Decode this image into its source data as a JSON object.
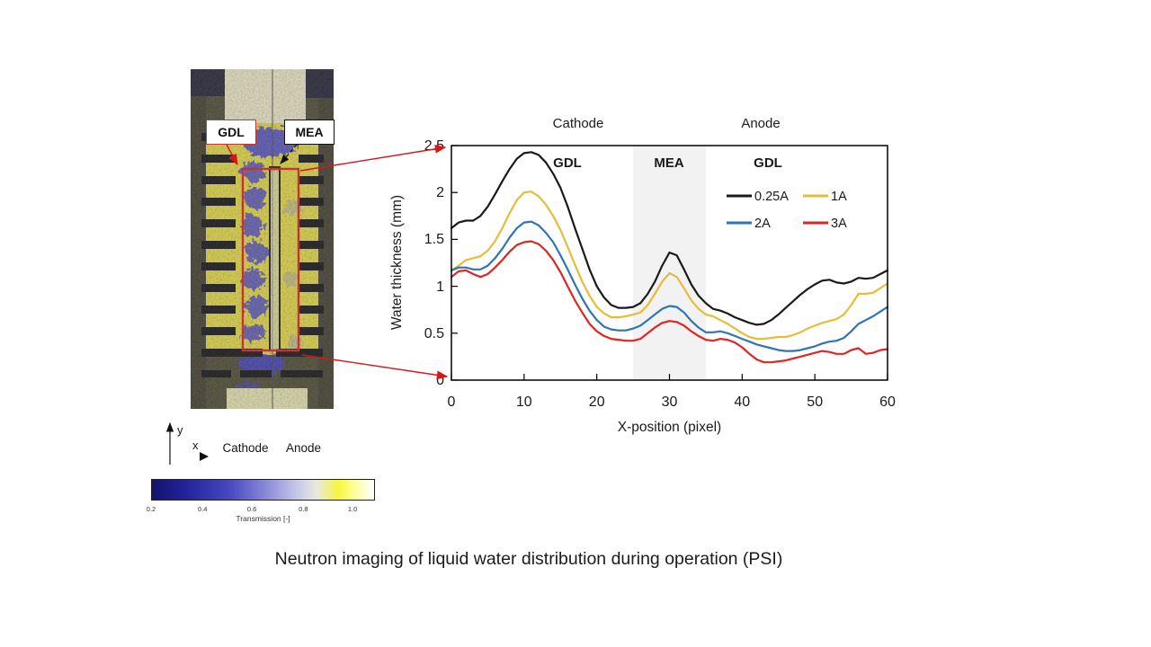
{
  "slide": {
    "caption": "Neutron imaging of liquid water distribution during operation (PSI)"
  },
  "colors": {
    "accent_red": "#d91616",
    "roi_red": "#e01515",
    "series_black": "#1a1a1a",
    "series_yellow": "#e6bd38",
    "series_blue": "#2e75b6",
    "series_red": "#e02525",
    "mea_shade": "#f2f2f2"
  },
  "neutron_figure": {
    "labels": {
      "gdl": "GDL",
      "mea": "MEA"
    },
    "axis_indicator": {
      "x": "x",
      "y": "y"
    },
    "electrode_labels": {
      "cathode": "Cathode",
      "anode": "Anode"
    },
    "colorbar": {
      "label": "Transmission [-]",
      "ticks": [
        "0.2",
        "0.4",
        "0.6",
        "0.8",
        "1.0"
      ],
      "tick_positions_pct": [
        0,
        23,
        45,
        68,
        90
      ],
      "gradient_stops": [
        "#14146e 0%",
        "#22229a 15%",
        "#4848c0 35%",
        "#8c8cd8 52%",
        "#c6c6ea 65%",
        "#e8e8e0 74%",
        "#f6f640 84%",
        "#ffff99 91%",
        "#ffffff 100%"
      ]
    }
  },
  "chart_data": {
    "type": "line",
    "title": "",
    "xlabel": "X-position (pixel)",
    "ylabel": "Water thickness (mm)",
    "xlim": [
      0,
      60
    ],
    "ylim": [
      0,
      2.5
    ],
    "xticks": [
      0,
      10,
      20,
      30,
      40,
      50,
      60
    ],
    "yticks": [
      0,
      0.5,
      1,
      1.5,
      2,
      2.5
    ],
    "grid": false,
    "legend_position": "top-right-inside",
    "top_labels": [
      {
        "text": "Cathode",
        "x": 17.5
      },
      {
        "text": "Anode",
        "x": 42.5
      }
    ],
    "region_labels": [
      {
        "text": "GDL",
        "x": 16
      },
      {
        "text": "MEA",
        "x": 30
      },
      {
        "text": "GDL",
        "x": 43.5
      }
    ],
    "shaded_region": {
      "x0": 25,
      "x1": 35,
      "color": "#f2f2f2"
    },
    "x_step": 1,
    "series": [
      {
        "name": "0.25A",
        "color": "#1a1a1a",
        "values": [
          1.62,
          1.68,
          1.7,
          1.7,
          1.75,
          1.85,
          1.98,
          2.12,
          2.25,
          2.36,
          2.42,
          2.43,
          2.4,
          2.32,
          2.2,
          2.05,
          1.85,
          1.62,
          1.4,
          1.18,
          1.0,
          0.88,
          0.8,
          0.77,
          0.77,
          0.78,
          0.82,
          0.92,
          1.05,
          1.22,
          1.36,
          1.33,
          1.18,
          1.02,
          0.9,
          0.82,
          0.76,
          0.74,
          0.71,
          0.67,
          0.64,
          0.61,
          0.59,
          0.6,
          0.64,
          0.7,
          0.77,
          0.84,
          0.91,
          0.97,
          1.02,
          1.06,
          1.07,
          1.04,
          1.03,
          1.05,
          1.09,
          1.08,
          1.09,
          1.13,
          1.17
        ]
      },
      {
        "name": "1A",
        "color": "#e6bd38",
        "values": [
          1.17,
          1.22,
          1.28,
          1.3,
          1.32,
          1.38,
          1.48,
          1.62,
          1.78,
          1.92,
          2.0,
          2.01,
          1.96,
          1.87,
          1.75,
          1.6,
          1.42,
          1.23,
          1.05,
          0.9,
          0.78,
          0.71,
          0.67,
          0.67,
          0.68,
          0.7,
          0.72,
          0.8,
          0.92,
          1.05,
          1.14,
          1.1,
          0.98,
          0.85,
          0.76,
          0.7,
          0.68,
          0.64,
          0.6,
          0.55,
          0.5,
          0.46,
          0.44,
          0.44,
          0.45,
          0.46,
          0.46,
          0.48,
          0.51,
          0.55,
          0.58,
          0.61,
          0.63,
          0.65,
          0.7,
          0.8,
          0.92,
          0.92,
          0.93,
          0.98,
          1.03
        ]
      },
      {
        "name": "2A",
        "color": "#2e75b6",
        "values": [
          1.17,
          1.2,
          1.2,
          1.18,
          1.18,
          1.22,
          1.3,
          1.4,
          1.52,
          1.62,
          1.68,
          1.69,
          1.65,
          1.57,
          1.47,
          1.33,
          1.18,
          1.02,
          0.87,
          0.74,
          0.64,
          0.57,
          0.54,
          0.53,
          0.53,
          0.55,
          0.58,
          0.64,
          0.7,
          0.76,
          0.79,
          0.78,
          0.72,
          0.63,
          0.56,
          0.51,
          0.51,
          0.52,
          0.5,
          0.47,
          0.44,
          0.41,
          0.38,
          0.36,
          0.34,
          0.32,
          0.31,
          0.31,
          0.32,
          0.34,
          0.36,
          0.39,
          0.41,
          0.42,
          0.45,
          0.52,
          0.6,
          0.64,
          0.68,
          0.73,
          0.78
        ]
      },
      {
        "name": "3A",
        "color": "#e02525",
        "values": [
          1.1,
          1.16,
          1.17,
          1.13,
          1.1,
          1.13,
          1.2,
          1.28,
          1.37,
          1.44,
          1.47,
          1.48,
          1.45,
          1.38,
          1.28,
          1.15,
          1.0,
          0.85,
          0.72,
          0.6,
          0.52,
          0.47,
          0.44,
          0.43,
          0.42,
          0.42,
          0.44,
          0.5,
          0.56,
          0.61,
          0.63,
          0.62,
          0.58,
          0.52,
          0.47,
          0.43,
          0.42,
          0.44,
          0.43,
          0.4,
          0.35,
          0.28,
          0.22,
          0.19,
          0.19,
          0.2,
          0.21,
          0.23,
          0.25,
          0.27,
          0.29,
          0.31,
          0.3,
          0.28,
          0.28,
          0.32,
          0.34,
          0.28,
          0.29,
          0.32,
          0.33
        ]
      }
    ]
  }
}
